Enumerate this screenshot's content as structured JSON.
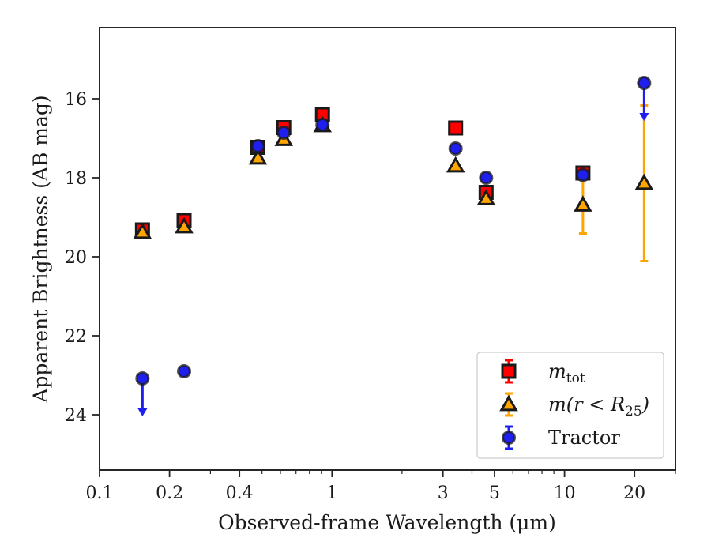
{
  "chart_data": {
    "type": "scatter",
    "xscale": "log",
    "yaxis_inverted": true,
    "xlim": [
      0.1,
      30
    ],
    "ylim": [
      25.4,
      14.2
    ],
    "xlabel": "Observed-frame Wavelength (μm)",
    "ylabel": "Apparent Brightness (AB mag)",
    "xticks": [
      {
        "value": 0.1,
        "label": "0.1"
      },
      {
        "value": 0.2,
        "label": "0.2"
      },
      {
        "value": 0.4,
        "label": "0.4"
      },
      {
        "value": 1,
        "label": "1"
      },
      {
        "value": 3,
        "label": "3"
      },
      {
        "value": 5,
        "label": "5"
      },
      {
        "value": 10,
        "label": "10"
      },
      {
        "value": 20,
        "label": "20"
      }
    ],
    "xminor": [
      0.3,
      0.5,
      0.6,
      0.7,
      0.8,
      0.9,
      2,
      4,
      6,
      7,
      8,
      9,
      30
    ],
    "yticks": [
      {
        "value": 16,
        "label": "16"
      },
      {
        "value": 18,
        "label": "18"
      },
      {
        "value": 20,
        "label": "20"
      },
      {
        "value": 22,
        "label": "22"
      },
      {
        "value": 24,
        "label": "24"
      }
    ],
    "grid": false,
    "legend_position": "lower right",
    "series": [
      {
        "key": "m_tot",
        "marker": "square",
        "color": "#ff0000",
        "edge_color": "#1a1a1a",
        "points": [
          {
            "x": 0.153,
            "y": 19.32,
            "err": 0.06
          },
          {
            "x": 0.231,
            "y": 19.08,
            "err": 0.06
          },
          {
            "x": 0.48,
            "y": 17.23,
            "err": 0.05
          },
          {
            "x": 0.62,
            "y": 16.73,
            "err": 0.05
          },
          {
            "x": 0.91,
            "y": 16.4,
            "err": 0.05
          },
          {
            "x": 3.4,
            "y": 16.74,
            "err": 0.05
          },
          {
            "x": 4.6,
            "y": 18.37,
            "err": 0.06
          },
          {
            "x": 12.0,
            "y": 17.88,
            "err": 0.06
          }
        ]
      },
      {
        "key": "m_r25",
        "marker": "triangle",
        "color": "#ffa500",
        "edge_color": "#1a1a1a",
        "points": [
          {
            "x": 0.153,
            "y": 19.38,
            "err": 0.05
          },
          {
            "x": 0.231,
            "y": 19.24,
            "err": 0.05
          },
          {
            "x": 0.48,
            "y": 17.5,
            "err": 0.05
          },
          {
            "x": 0.62,
            "y": 17.03,
            "err": 0.05
          },
          {
            "x": 0.91,
            "y": 16.68,
            "err": 0.05
          },
          {
            "x": 3.4,
            "y": 17.7,
            "err": 0.05
          },
          {
            "x": 4.6,
            "y": 18.53,
            "err": 0.05
          },
          {
            "x": 12.0,
            "y": 18.69,
            "err": 0.72
          },
          {
            "x": 22.0,
            "y": 18.14,
            "err": 1.97
          }
        ]
      },
      {
        "key": "tractor",
        "marker": "circle",
        "color": "#1f1ff0",
        "edge_color": "#1a1a1a",
        "points": [
          {
            "x": 0.153,
            "y": 23.08,
            "upper_limit": true
          },
          {
            "x": 0.231,
            "y": 22.9,
            "err": 0.06
          },
          {
            "x": 0.48,
            "y": 17.2,
            "err": 0.04
          },
          {
            "x": 0.62,
            "y": 16.86,
            "err": 0.04
          },
          {
            "x": 0.91,
            "y": 16.66,
            "err": 0.04
          },
          {
            "x": 3.4,
            "y": 17.26,
            "err": 0.04
          },
          {
            "x": 4.6,
            "y": 18.0,
            "err": 0.04
          },
          {
            "x": 12.0,
            "y": 17.93,
            "err": 0.05
          },
          {
            "x": 22.0,
            "y": 15.6,
            "upper_limit": true
          }
        ]
      }
    ],
    "legend": [
      {
        "series": "m_tot",
        "label_main": "m",
        "label_sub": "tot",
        "label_rest": ""
      },
      {
        "series": "m_r25",
        "label_main": "m(r < R",
        "label_sub": "25",
        "label_rest": ")"
      },
      {
        "series": "tractor",
        "label_main": "Tractor",
        "label_sub": "",
        "label_rest": ""
      }
    ]
  }
}
